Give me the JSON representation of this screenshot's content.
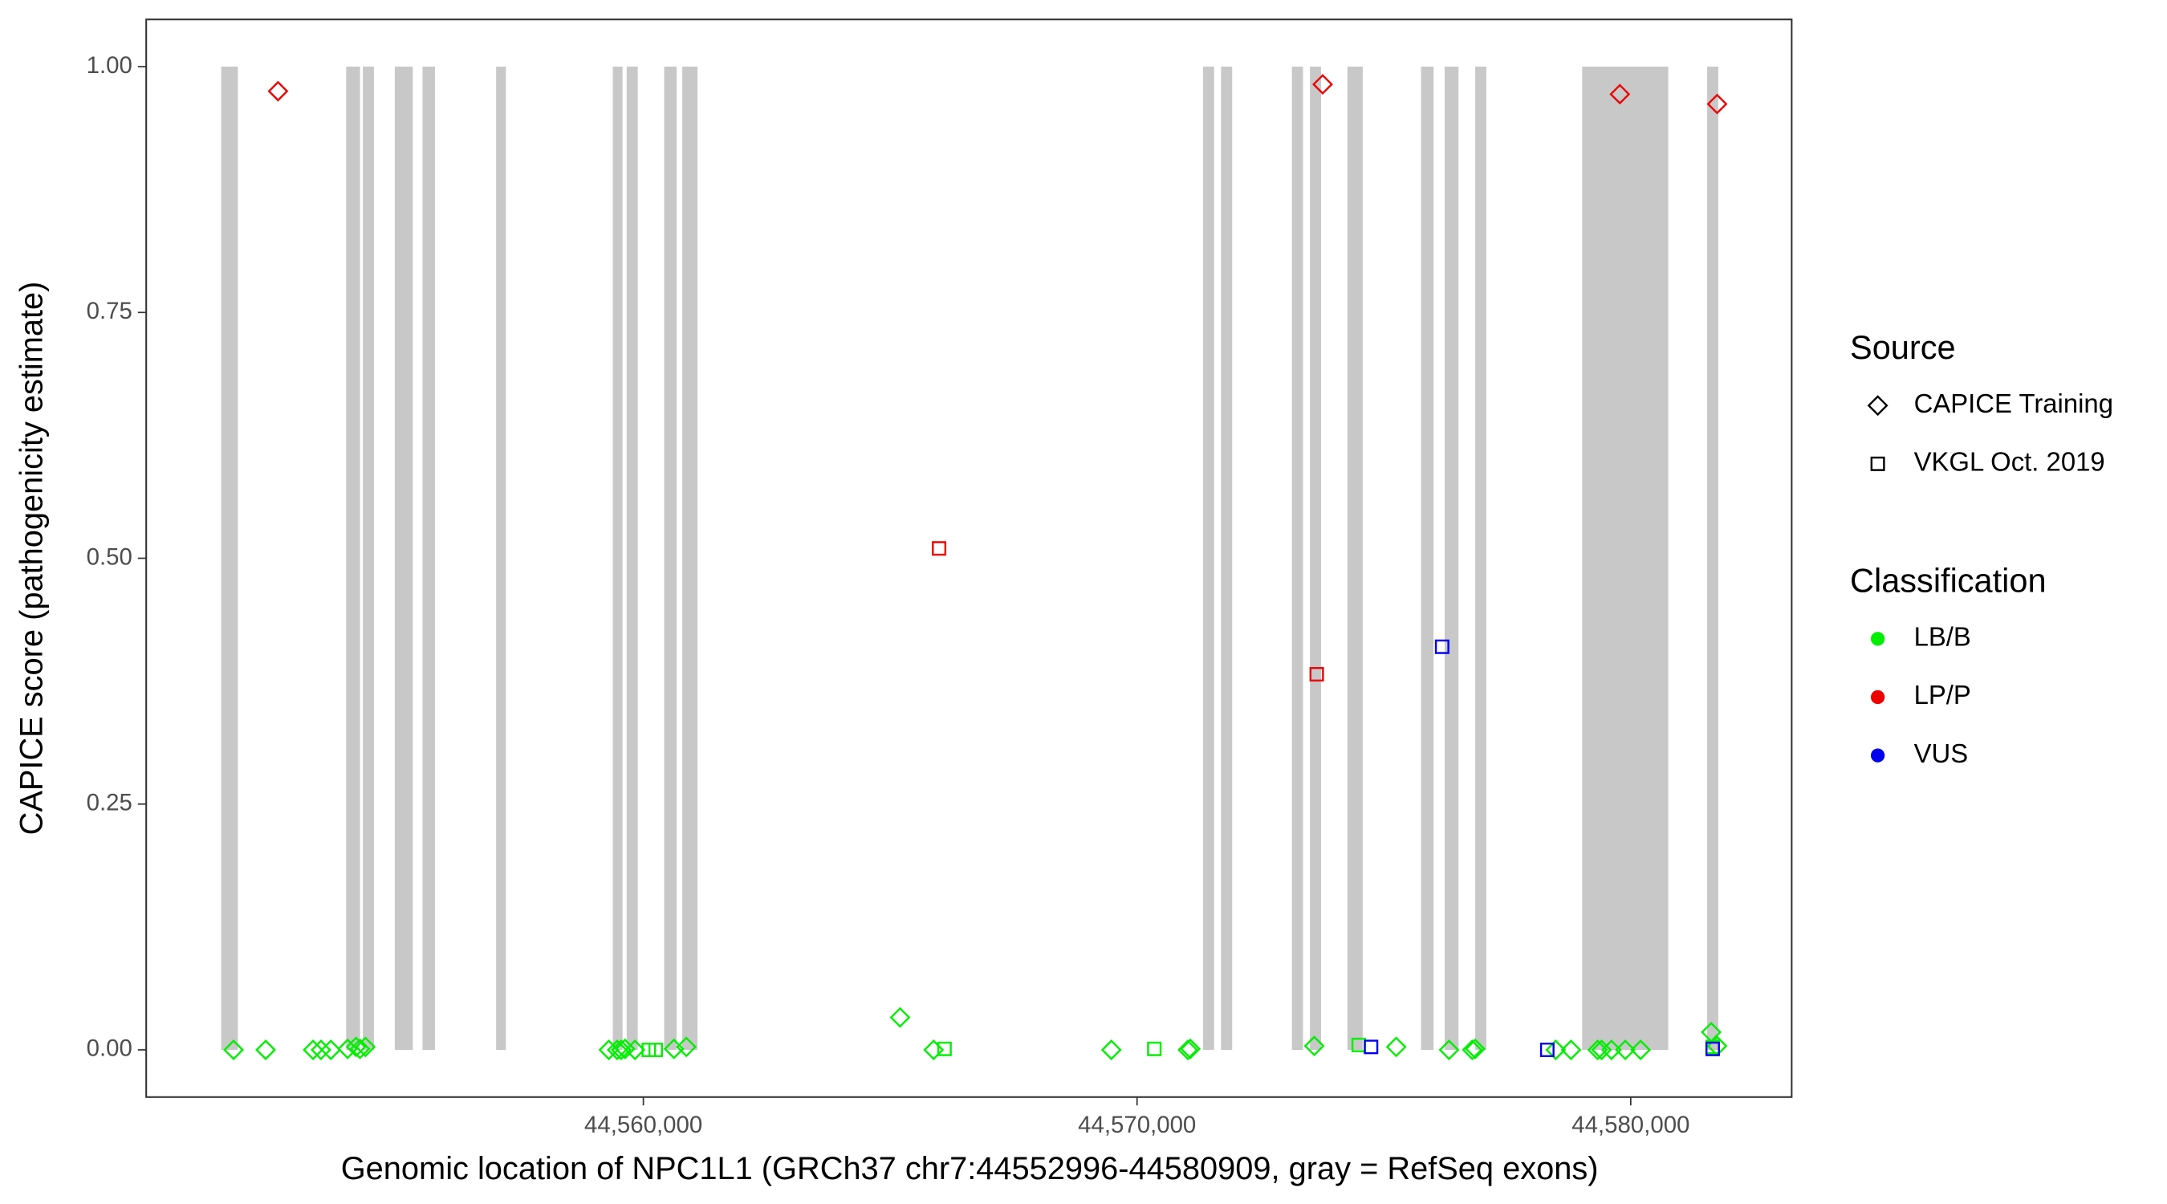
{
  "chart_data": {
    "type": "scatter",
    "x_label": "Genomic location of NPC1L1 (GRCh37 chr7:44552996-44580909, gray = RefSeq exons)",
    "y_label": "CAPICE score (pathogenicity estimate)",
    "xlim": [
      44549930,
      44583260
    ],
    "ylim": [
      -0.048,
      1.048
    ],
    "xticks": [
      {
        "value": 44560000,
        "label": "44,560,000"
      },
      {
        "value": 44570000,
        "label": "44,570,000"
      },
      {
        "value": 44580000,
        "label": "44,580,000"
      }
    ],
    "yticks": [
      {
        "value": 0,
        "label": "0.00"
      },
      {
        "value": 0.25,
        "label": "0.25"
      },
      {
        "value": 0.5,
        "label": "0.50"
      },
      {
        "value": 0.75,
        "label": "0.75"
      },
      {
        "value": 1,
        "label": "1.00"
      }
    ],
    "exon_color": "#c8c8c8",
    "exons": [
      [
        44551448,
        44551786
      ],
      [
        44553980,
        44554261
      ],
      [
        44554318,
        44554543
      ],
      [
        44554965,
        44555330
      ],
      [
        44555527,
        44555780
      ],
      [
        44557018,
        44557215
      ],
      [
        44559381,
        44559578
      ],
      [
        44559662,
        44559887
      ],
      [
        44560422,
        44560675
      ],
      [
        44560788,
        44561097
      ],
      [
        44571336,
        44571561
      ],
      [
        44571702,
        44571927
      ],
      [
        44573137,
        44573362
      ],
      [
        44573502,
        44573727
      ],
      [
        44574262,
        44574571
      ],
      [
        44575753,
        44576006
      ],
      [
        44576231,
        44576512
      ],
      [
        44576850,
        44577075
      ],
      [
        44579016,
        44580760
      ],
      [
        44581548,
        44581773
      ]
    ],
    "shape_legend": {
      "title": "Source",
      "items": [
        {
          "label": "CAPICE Training",
          "shape": "diamond"
        },
        {
          "label": "VKGL Oct. 2019",
          "shape": "square"
        }
      ]
    },
    "color_legend": {
      "title": "Classification",
      "items": [
        {
          "label": "LB/B",
          "color": "#00ee00"
        },
        {
          "label": "LP/P",
          "color": "#ee0000"
        },
        {
          "label": "VUS",
          "color": "#0000ee"
        }
      ]
    },
    "series": [
      {
        "source": 0,
        "class": 0,
        "x": [
          44551700,
          44552350,
          44553310,
          44553470,
          44553670,
          44554010,
          44554180,
          44554260,
          44554370,
          44559300,
          44559470,
          44559550,
          44559630,
          44559830,
          44560620,
          44560870,
          44565200,
          44565880,
          44569480,
          44571030,
          44571080,
          44573590,
          44575250,
          44576320,
          44576790,
          44576850,
          44578480,
          44578790,
          44579330,
          44579410,
          44579610,
          44579890,
          44580200,
          44581630,
          44581750
        ],
        "values": [
          0,
          0,
          0,
          0,
          0,
          0.001,
          0.003,
          0.001,
          0.003,
          0,
          0,
          0,
          0.001,
          0,
          0.001,
          0.003,
          0.033,
          0,
          0,
          0,
          0.001,
          0.004,
          0.003,
          0,
          0,
          0.001,
          0,
          0,
          0,
          0,
          0,
          0,
          0,
          0.018,
          0.004
        ]
      },
      {
        "source": 0,
        "class": 1,
        "x": [
          44552600,
          44573760,
          44579780,
          44581750
        ],
        "values": [
          0.975,
          0.982,
          0.972,
          0.962
        ]
      },
      {
        "source": 1,
        "class": 0,
        "x": [
          44560110,
          44560250,
          44566100,
          44570350,
          44574490,
          44581660
        ],
        "values": [
          0,
          0,
          0.001,
          0.001,
          0.005,
          0.003
        ]
      },
      {
        "source": 1,
        "class": 1,
        "x": [
          44565990,
          44573640
        ],
        "values": [
          0.51,
          0.382
        ]
      },
      {
        "source": 1,
        "class": 2,
        "x": [
          44576180,
          44574740,
          44578310,
          44581660
        ],
        "values": [
          0.41,
          0.003,
          0,
          0.001
        ]
      }
    ]
  }
}
